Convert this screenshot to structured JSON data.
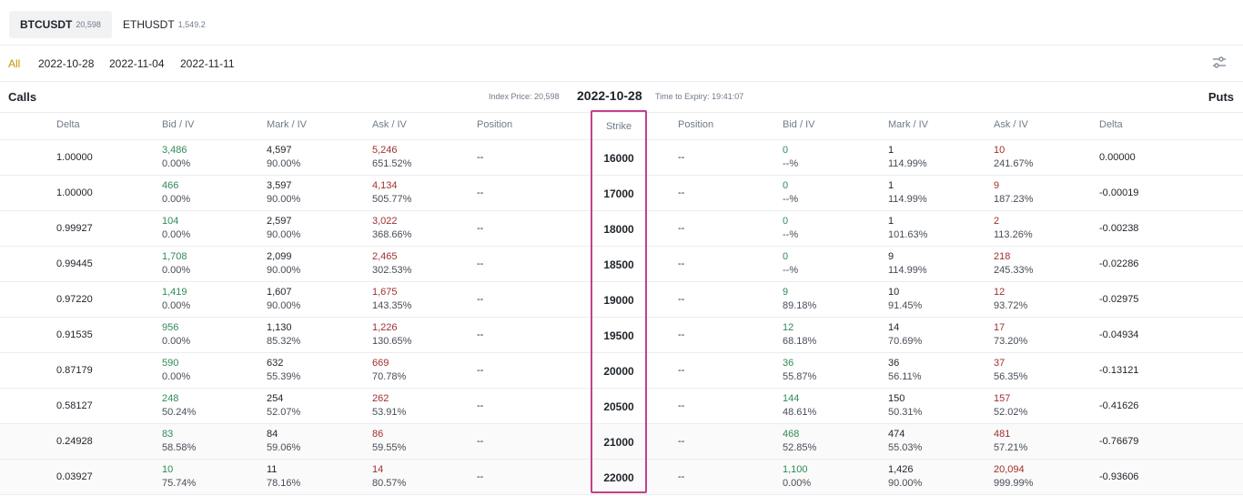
{
  "symbols": [
    {
      "name": "BTCUSDT",
      "price": "20,598"
    },
    {
      "name": "ETHUSDT",
      "price": "1,549.2"
    }
  ],
  "dates": [
    "All",
    "2022-10-28",
    "2022-11-04",
    "2022-11-11"
  ],
  "header": {
    "calls": "Calls",
    "puts": "Puts",
    "index_price": "Index Price: 20,598",
    "date": "2022-10-28",
    "expiry": "Time to Expiry: 19:41:07"
  },
  "columns": {
    "delta": "Delta",
    "bid": "Bid / IV",
    "mark": "Mark / IV",
    "ask": "Ask / IV",
    "position": "Position",
    "strike": "Strike"
  },
  "rows": [
    {
      "strike": "16000",
      "c_delta": "1.00000",
      "c_bid": "3,486",
      "c_bid_iv": "0.00%",
      "c_mark": "4,597",
      "c_mark_iv": "90.00%",
      "c_ask": "5,246",
      "c_ask_iv": "651.52%",
      "c_pos": "--",
      "p_pos": "--",
      "p_bid": "0",
      "p_bid_iv": "--%",
      "p_mark": "1",
      "p_mark_iv": "114.99%",
      "p_ask": "10",
      "p_ask_iv": "241.67%",
      "p_delta": "0.00000"
    },
    {
      "strike": "17000",
      "c_delta": "1.00000",
      "c_bid": "466",
      "c_bid_iv": "0.00%",
      "c_mark": "3,597",
      "c_mark_iv": "90.00%",
      "c_ask": "4,134",
      "c_ask_iv": "505.77%",
      "c_pos": "--",
      "p_pos": "--",
      "p_bid": "0",
      "p_bid_iv": "--%",
      "p_mark": "1",
      "p_mark_iv": "114.99%",
      "p_ask": "9",
      "p_ask_iv": "187.23%",
      "p_delta": "-0.00019"
    },
    {
      "strike": "18000",
      "c_delta": "0.99927",
      "c_bid": "104",
      "c_bid_iv": "0.00%",
      "c_mark": "2,597",
      "c_mark_iv": "90.00%",
      "c_ask": "3,022",
      "c_ask_iv": "368.66%",
      "c_pos": "--",
      "p_pos": "--",
      "p_bid": "0",
      "p_bid_iv": "--%",
      "p_mark": "1",
      "p_mark_iv": "101.63%",
      "p_ask": "2",
      "p_ask_iv": "113.26%",
      "p_delta": "-0.00238"
    },
    {
      "strike": "18500",
      "c_delta": "0.99445",
      "c_bid": "1,708",
      "c_bid_iv": "0.00%",
      "c_mark": "2,099",
      "c_mark_iv": "90.00%",
      "c_ask": "2,465",
      "c_ask_iv": "302.53%",
      "c_pos": "--",
      "p_pos": "--",
      "p_bid": "0",
      "p_bid_iv": "--%",
      "p_mark": "9",
      "p_mark_iv": "114.99%",
      "p_ask": "218",
      "p_ask_iv": "245.33%",
      "p_delta": "-0.02286"
    },
    {
      "strike": "19000",
      "c_delta": "0.97220",
      "c_bid": "1,419",
      "c_bid_iv": "0.00%",
      "c_mark": "1,607",
      "c_mark_iv": "90.00%",
      "c_ask": "1,675",
      "c_ask_iv": "143.35%",
      "c_pos": "--",
      "p_pos": "--",
      "p_bid": "9",
      "p_bid_iv": "89.18%",
      "p_mark": "10",
      "p_mark_iv": "91.45%",
      "p_ask": "12",
      "p_ask_iv": "93.72%",
      "p_delta": "-0.02975"
    },
    {
      "strike": "19500",
      "c_delta": "0.91535",
      "c_bid": "956",
      "c_bid_iv": "0.00%",
      "c_mark": "1,130",
      "c_mark_iv": "85.32%",
      "c_ask": "1,226",
      "c_ask_iv": "130.65%",
      "c_pos": "--",
      "p_pos": "--",
      "p_bid": "12",
      "p_bid_iv": "68.18%",
      "p_mark": "14",
      "p_mark_iv": "70.69%",
      "p_ask": "17",
      "p_ask_iv": "73.20%",
      "p_delta": "-0.04934"
    },
    {
      "strike": "20000",
      "c_delta": "0.87179",
      "c_bid": "590",
      "c_bid_iv": "0.00%",
      "c_mark": "632",
      "c_mark_iv": "55.39%",
      "c_ask": "669",
      "c_ask_iv": "70.78%",
      "c_pos": "--",
      "p_pos": "--",
      "p_bid": "36",
      "p_bid_iv": "55.87%",
      "p_mark": "36",
      "p_mark_iv": "56.11%",
      "p_ask": "37",
      "p_ask_iv": "56.35%",
      "p_delta": "-0.13121"
    },
    {
      "strike": "20500",
      "c_delta": "0.58127",
      "c_bid": "248",
      "c_bid_iv": "50.24%",
      "c_mark": "254",
      "c_mark_iv": "52.07%",
      "c_ask": "262",
      "c_ask_iv": "53.91%",
      "c_pos": "--",
      "p_pos": "--",
      "p_bid": "144",
      "p_bid_iv": "48.61%",
      "p_mark": "150",
      "p_mark_iv": "50.31%",
      "p_ask": "157",
      "p_ask_iv": "52.02%",
      "p_delta": "-0.41626"
    },
    {
      "strike": "21000",
      "c_delta": "0.24928",
      "c_bid": "83",
      "c_bid_iv": "58.58%",
      "c_mark": "84",
      "c_mark_iv": "59.06%",
      "c_ask": "86",
      "c_ask_iv": "59.55%",
      "c_pos": "--",
      "p_pos": "--",
      "p_bid": "468",
      "p_bid_iv": "52.85%",
      "p_mark": "474",
      "p_mark_iv": "55.03%",
      "p_ask": "481",
      "p_ask_iv": "57.21%",
      "p_delta": "-0.76679"
    },
    {
      "strike": "22000",
      "c_delta": "0.03927",
      "c_bid": "10",
      "c_bid_iv": "75.74%",
      "c_mark": "11",
      "c_mark_iv": "78.16%",
      "c_ask": "14",
      "c_ask_iv": "80.57%",
      "c_pos": "--",
      "p_pos": "--",
      "p_bid": "1,100",
      "p_bid_iv": "0.00%",
      "p_mark": "1,426",
      "p_mark_iv": "90.00%",
      "p_ask": "20,094",
      "p_ask_iv": "999.99%",
      "p_delta": "-0.93606"
    }
  ],
  "colors": {
    "accent": "#c99400",
    "bid": "#2e8b57",
    "ask": "#a0302f",
    "strike_highlight": "#c2418a"
  },
  "icons": {
    "filter": "sliders-icon"
  }
}
